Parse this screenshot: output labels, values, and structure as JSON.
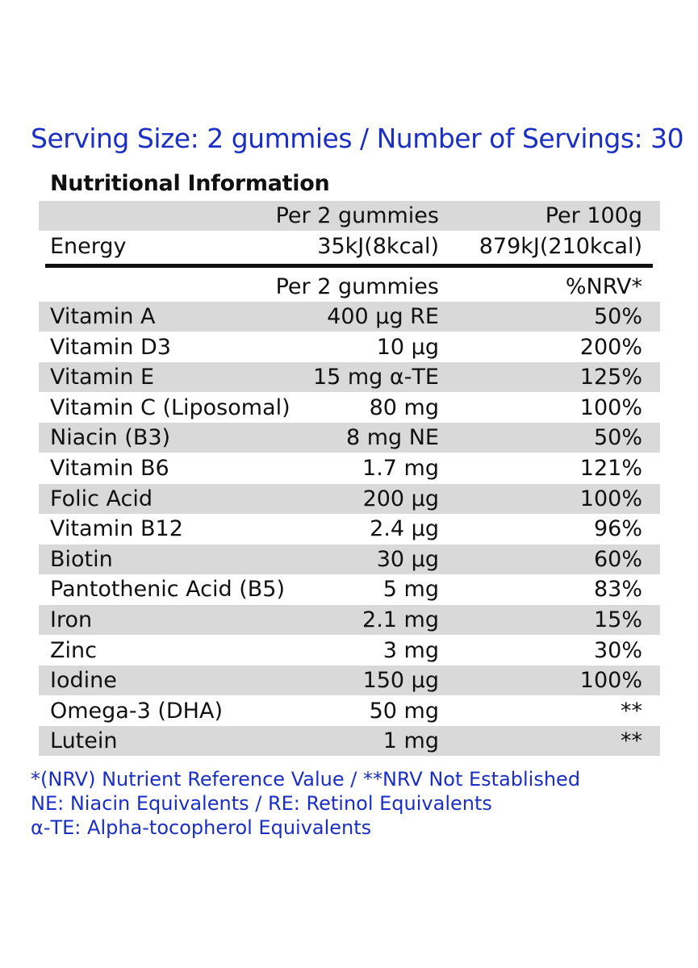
{
  "serving_line": "Serving Size: 2 gummies  / Number of Servings: 30",
  "heading": "Nutritional Information",
  "energy_header": {
    "label": "",
    "col1": "Per 2 gummies",
    "col2": "Per 100g"
  },
  "energy_row": {
    "label": "Energy",
    "col1": "35kJ(8kcal)",
    "col2": "879kJ(210kcal)"
  },
  "nutrient_header": {
    "label": "",
    "col1": "Per 2 gummies",
    "col2": "%NRV*"
  },
  "nutrients": [
    {
      "name": "Vitamin A",
      "amount": "400 µg RE",
      "nrv": "50%"
    },
    {
      "name": "Vitamin D3",
      "amount": "10 µg",
      "nrv": "200%"
    },
    {
      "name": "Vitamin E",
      "amount": "15 mg α-TE",
      "nrv": "125%"
    },
    {
      "name": "Vitamin C (Liposomal)",
      "amount": "80 mg",
      "nrv": "100%"
    },
    {
      "name": "Niacin (B3)",
      "amount": "8 mg NE",
      "nrv": "50%"
    },
    {
      "name": "Vitamin B6",
      "amount": "1.7 mg",
      "nrv": "121%"
    },
    {
      "name": "Folic Acid",
      "amount": "200 µg",
      "nrv": "100%"
    },
    {
      "name": "Vitamin B12",
      "amount": "2.4 µg",
      "nrv": "96%"
    },
    {
      "name": "Biotin",
      "amount": "30 µg",
      "nrv": "60%"
    },
    {
      "name": "Pantothenic Acid (B5)",
      "amount": "5 mg",
      "nrv": "83%"
    },
    {
      "name": "Iron",
      "amount": "2.1 mg",
      "nrv": "15%"
    },
    {
      "name": "Zinc",
      "amount": "3 mg",
      "nrv": "30%"
    },
    {
      "name": "Iodine",
      "amount": "150 µg",
      "nrv": "100%"
    },
    {
      "name": "Omega-3 (DHA)",
      "amount": "50 mg",
      "nrv": "**"
    },
    {
      "name": "Lutein",
      "amount": "1 mg",
      "nrv": "**"
    }
  ],
  "footnotes": [
    "*(NRV) Nutrient Reference Value / **NRV Not Established",
    "NE: Niacin Equivalents / RE: Retinol Equivalents",
    "α-TE:  Alpha-tocopherol Equivalents"
  ],
  "colors": {
    "accent": "#1b2fc4",
    "shade": "#d9d9d9",
    "text": "#111111"
  }
}
